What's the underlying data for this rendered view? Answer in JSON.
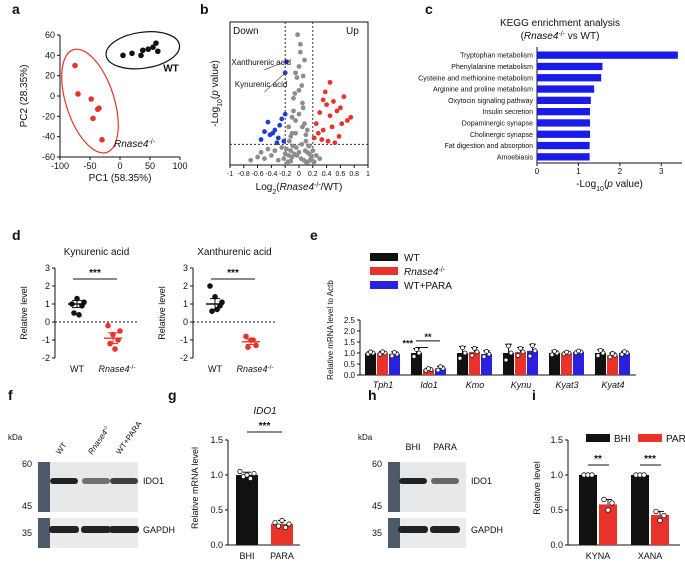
{
  "chart_data": [
    {
      "panel": "a",
      "type": "scatter",
      "xlabel": "PC1 (58.35%)",
      "ylabel": "PC2 (28.35%)",
      "xlim": [
        -100,
        100
      ],
      "ylim": [
        -60,
        60
      ],
      "xticks": [
        "-100",
        "-50",
        "0",
        "50",
        "100"
      ],
      "yticks": [
        "-60",
        "-40",
        "-20",
        "0",
        "20",
        "40",
        "60"
      ],
      "series": [
        {
          "name": "WT",
          "color": "#111111",
          "x": [
            5,
            20,
            35,
            38,
            55,
            60,
            63,
            47
          ],
          "y": [
            40,
            42,
            40,
            45,
            48,
            52,
            44,
            46
          ]
        },
        {
          "name": "Rnase4-/-",
          "color": "#e8322a",
          "x": [
            -75,
            -70,
            -48,
            -45,
            -37,
            -35,
            -30
          ],
          "y": [
            30,
            2,
            -3,
            -22,
            -13,
            -12,
            -43
          ]
        }
      ]
    },
    {
      "panel": "b",
      "type": "scatter",
      "xlabel_main": "Log",
      "xlabel_sub": "2",
      "xlabel_italic": "Rnase4",
      "xlabel_sup": "-/-",
      "xlabel_tail": "/WT)",
      "ylabel": "-Log10(p value)",
      "ylabel_pre": "-Log",
      "ylabel_sub": "10",
      "ylabel_post": "(",
      "ylabel_italic": "p",
      "ylabel_tail": " value)",
      "xlim": [
        -1,
        1
      ],
      "ylim": [
        0,
        9
      ],
      "xticks": [
        "-1",
        "-0.8",
        "-0.6",
        "-0.4",
        "-0.2",
        "0",
        "0.2",
        "0.4",
        "0.6",
        "0.8",
        "1"
      ],
      "down_label": "Down",
      "up_label": "Up",
      "annotations": [
        "Xanthurenic acid",
        "Kynurenic acid"
      ],
      "series": [
        {
          "name": "Down",
          "color": "#1f3cd6",
          "x": [
            -0.18,
            -0.2,
            -0.5,
            -0.42,
            -0.35,
            -0.3,
            -0.28,
            -0.22,
            -0.25,
            -0.32,
            -0.2,
            -0.55,
            -0.45,
            -0.38
          ],
          "y": [
            6.5,
            5.8,
            2.1,
            1.9,
            2.2,
            1.7,
            2.5,
            1.5,
            2.9,
            1.4,
            3.2,
            1.6,
            2.7,
            2.0
          ]
        },
        {
          "name": "Up",
          "color": "#e8322a",
          "x": [
            0.25,
            0.3,
            0.35,
            0.4,
            0.45,
            0.5,
            0.55,
            0.6,
            0.65,
            0.7,
            0.38,
            0.48,
            0.33,
            0.58,
            0.42,
            0.28,
            0.52,
            0.62,
            0.22,
            0.75,
            0.45,
            0.35
          ],
          "y": [
            2.6,
            3.3,
            2.2,
            3.8,
            3.1,
            4.0,
            3.4,
            3.6,
            4.3,
            2.8,
            4.6,
            2.4,
            1.6,
            1.8,
            1.5,
            2.0,
            1.4,
            2.6,
            1.7,
            3.0,
            5.2,
            4.1
          ]
        },
        {
          "name": "NS",
          "color": "#8d8d8d",
          "x": [
            -0.7,
            -0.6,
            -0.55,
            -0.5,
            -0.45,
            -0.4,
            -0.35,
            -0.3,
            -0.25,
            -0.2,
            -0.15,
            -0.12,
            -0.1,
            -0.08,
            -0.05,
            -0.03,
            0,
            0.02,
            0.04,
            0.06,
            0.08,
            0.1,
            0.12,
            0.15,
            0.18,
            0.2,
            0.25,
            0.3,
            -0.08,
            -0.05,
            0,
            0.05,
            0.08,
            -0.12,
            0.12,
            -0.02,
            0.02,
            -0.1,
            0.1,
            -0.15,
            0.15,
            -0.06,
            0.06,
            0,
            -0.04,
            0.04,
            -0.18,
            0.18,
            -0.22,
            0.22,
            -0.1,
            0.1,
            -0.05,
            0.05,
            0,
            -0.14,
            0.14,
            -0.09,
            0.09,
            -0.03,
            0.03,
            -0.07,
            0.07,
            -0.16,
            0.16,
            -0.12,
            0.12
          ],
          "y": [
            0.3,
            0.5,
            0.8,
            0.4,
            1.0,
            0.6,
            0.9,
            0.3,
            1.1,
            0.7,
            2.4,
            1.8,
            3.0,
            4.2,
            2.8,
            5.5,
            6.2,
            7.6,
            5.0,
            3.6,
            2.6,
            1.9,
            0.8,
            1.2,
            0.5,
            0.9,
            0.6,
            0.4,
            3.4,
            5.8,
            4.7,
            3.9,
            6.6,
            0.9,
            2.2,
            8.2,
            7.1,
            2.0,
            1.5,
            0.6,
            0.7,
            4.5,
            5.6,
            3.2,
            1.1,
            1.3,
            1.0,
            0.3,
            0.4,
            0.2,
            0.5,
            0.2,
            2.0,
            2.4,
            0.8,
            1.5,
            1.2,
            1.2,
            0.9,
            0.6,
            0.4,
            0.7,
            0.3,
            0.2,
            0.3,
            0.25,
            0.15
          ]
        }
      ]
    },
    {
      "panel": "c",
      "type": "bar",
      "orientation": "horizontal",
      "title": "KEGG enrichment analysis",
      "subtitle_pre": "(",
      "subtitle_italic": "Rnase4",
      "subtitle_sup": "-/-",
      "subtitle_tail": " vs WT)",
      "xlabel_pre": "-Log",
      "xlabel_sub": "10",
      "xlabel_post": "(",
      "xlabel_italic": "p",
      "xlabel_tail": " value)",
      "xlim": [
        0,
        3.5
      ],
      "xticks": [
        "0",
        "1",
        "2",
        "3"
      ],
      "color": "#1a1aea",
      "categories": [
        "Tryptophan metabolism",
        "Phenylalanine metabolism",
        "Cysteine and methionine metabolism",
        "Arginine and proline metabolism",
        "Oxytocin signaling pathway",
        "Insulin secretion",
        "Dopaminergic synapse",
        "Cholinergic synapse",
        "Fat digestion and absorption",
        "Amoebiasis"
      ],
      "values": [
        3.4,
        1.58,
        1.55,
        1.38,
        1.3,
        1.28,
        1.28,
        1.28,
        1.27,
        1.27
      ]
    },
    {
      "panel": "d1",
      "type": "scatter",
      "title": "Kynurenic acid",
      "ylabel": "Relative level",
      "ylim": [
        -2,
        3
      ],
      "yticks": [
        "-2",
        "-1",
        "0",
        "1",
        "2",
        "3"
      ],
      "groups": [
        "WT",
        "Rnase4-/-"
      ],
      "group_wt": "WT",
      "group_ko": "Rnase4",
      "group_ko_sup": "-/-",
      "significance": "***",
      "series": [
        {
          "name": "WT",
          "color": "#111111",
          "mean": 1.0,
          "sem": 0.2,
          "values": [
            1.0,
            1.3,
            0.9,
            0.5,
            0.4,
            1.1
          ]
        },
        {
          "name": "Rnase4-/-",
          "color": "#e8322a",
          "mean": -0.9,
          "sem": 0.3,
          "values": [
            -0.2,
            -0.7,
            -1.0,
            -1.2,
            -1.5,
            -0.5
          ]
        }
      ]
    },
    {
      "panel": "d2",
      "type": "scatter",
      "title": "Xanthurenic acid",
      "ylabel": "Relative level",
      "ylim": [
        -2,
        3
      ],
      "yticks": [
        "-2",
        "-1",
        "0",
        "1",
        "2",
        "3"
      ],
      "groups": [
        "WT",
        "Rnase4-/-"
      ],
      "group_wt": "WT",
      "group_ko": "Rnase4",
      "group_ko_sup": "-/-",
      "significance": "***",
      "series": [
        {
          "name": "WT",
          "color": "#111111",
          "mean": 1.0,
          "sem": 0.3,
          "values": [
            2.0,
            1.4,
            0.9,
            0.6,
            0.7,
            1.1
          ]
        },
        {
          "name": "Rnase4-/-",
          "color": "#e8322a",
          "mean": -1.1,
          "sem": 0.15,
          "values": [
            -0.8,
            -1.0,
            -1.3,
            -1.4,
            -1.0
          ]
        }
      ]
    },
    {
      "panel": "e",
      "type": "bar",
      "ylabel": "Relative mRNA level to Actb",
      "ylim": [
        0,
        2.5
      ],
      "yticks": [
        "0.0",
        "0.5",
        "1.0",
        "1.5",
        "2.0",
        "2.5"
      ],
      "categories": [
        "Tph1",
        "Ido1",
        "Kmo",
        "Kynu",
        "Kyat3",
        "Kyat4"
      ],
      "legend": [
        "WT",
        "Rnase4-/-",
        "WT+PARA"
      ],
      "legend_ko_base": "Rnase4",
      "legend_ko_sup": "-/-",
      "sig_marks": [
        "**",
        "***"
      ],
      "series": [
        {
          "name": "WT",
          "color": "#111111",
          "values": [
            1.0,
            1.0,
            1.0,
            1.0,
            1.0,
            1.0
          ],
          "err": [
            0.06,
            0.2,
            0.3,
            0.4,
            0.1,
            0.15
          ]
        },
        {
          "name": "Rnase4-/-",
          "color": "#e8322a",
          "values": [
            1.0,
            0.25,
            1.05,
            1.05,
            1.0,
            0.9
          ],
          "err": [
            0.07,
            0.05,
            0.2,
            0.2,
            0.05,
            0.1
          ]
        },
        {
          "name": "WT+PARA",
          "color": "#2b1fe0",
          "values": [
            0.95,
            0.3,
            0.95,
            1.1,
            1.05,
            1.0
          ],
          "err": [
            0.1,
            0.1,
            0.15,
            0.3,
            0.05,
            0.08
          ]
        }
      ]
    },
    {
      "panel": "f",
      "type": "blot",
      "unit": "kDa",
      "markers": [
        "60",
        "45",
        "35"
      ],
      "lanes": [
        "WT",
        "Rnase4-/-",
        "WT+PARA"
      ],
      "lane_ko_base": "Rnase4",
      "lane_ko_sup": "-/-",
      "bands": [
        "IDO1",
        "GAPDH"
      ],
      "intensity_ido1": [
        1.0,
        0.6,
        0.85
      ],
      "intensity_gapdh": [
        1.0,
        1.0,
        1.0
      ]
    },
    {
      "panel": "g",
      "type": "bar",
      "title": "IDO1",
      "ylabel": "Relative mRNA level",
      "ylim": [
        0,
        1.5
      ],
      "yticks": [
        "0.0",
        "0.5",
        "1.0",
        "1.5"
      ],
      "categories": [
        "BHI",
        "PARA"
      ],
      "significance": "***",
      "series": [
        {
          "name": "level",
          "colors": [
            "#111111",
            "#e8322a"
          ],
          "values": [
            1.0,
            0.3
          ],
          "err": [
            0.04,
            0.05
          ],
          "points": [
            [
              1.05,
              0.98,
              1.0,
              0.95,
              1.02
            ],
            [
              0.32,
              0.27,
              0.35,
              0.25,
              0.3
            ]
          ]
        }
      ]
    },
    {
      "panel": "h",
      "type": "blot",
      "unit": "kDa",
      "markers": [
        "60",
        "45",
        "35"
      ],
      "lanes": [
        "BHI",
        "PARA"
      ],
      "bands": [
        "IDO1",
        "GAPDH"
      ],
      "intensity_ido1": [
        1.0,
        0.65
      ],
      "intensity_gapdh": [
        1.0,
        1.0
      ]
    },
    {
      "panel": "i",
      "type": "bar",
      "ylabel": "Relative level",
      "ylim": [
        0,
        1.5
      ],
      "yticks": [
        "0.0",
        "0.5",
        "1.0",
        "1.5"
      ],
      "categories": [
        "KYNA",
        "XANA"
      ],
      "legend": [
        "BHI",
        "PARA"
      ],
      "significance": [
        "**",
        "***"
      ],
      "series": [
        {
          "name": "BHI",
          "color": "#111111",
          "values": [
            1.0,
            1.0
          ],
          "err": [
            0.01,
            0.01
          ],
          "points": [
            [
              1.0,
              1.0,
              1.0
            ],
            [
              1.0,
              1.0,
              1.0
            ]
          ]
        },
        {
          "name": "PARA",
          "color": "#e8322a",
          "values": [
            0.58,
            0.43
          ],
          "err": [
            0.07,
            0.05
          ],
          "points": [
            [
              0.65,
              0.5,
              0.6
            ],
            [
              0.48,
              0.35,
              0.42
            ]
          ]
        }
      ]
    }
  ],
  "panel_labels": [
    "a",
    "b",
    "c",
    "d",
    "e",
    "f",
    "g",
    "h",
    "i"
  ]
}
